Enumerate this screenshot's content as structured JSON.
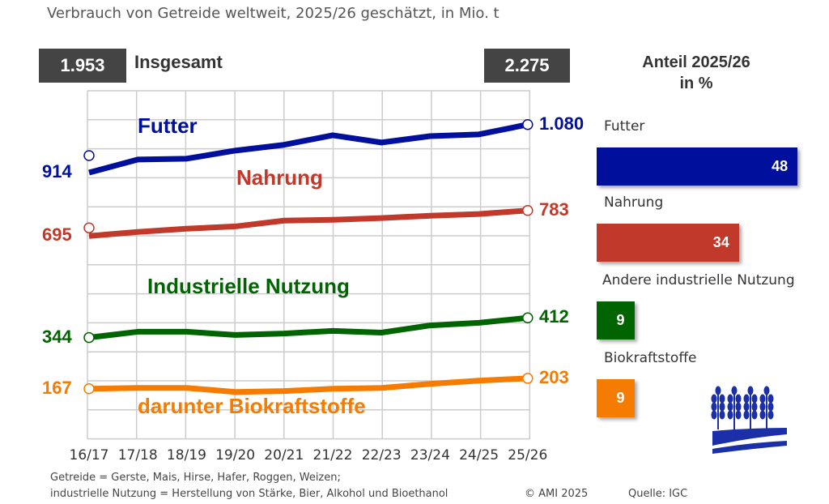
{
  "title": "Verbrauch von Getreide weltweit, 2025/26 geschätzt, in Mio. t",
  "totals": {
    "label": "Insgesamt",
    "start": "1.953",
    "end": "2.275"
  },
  "share": {
    "title_line1": "Anteil 2025/26",
    "title_line2": "in %",
    "items": [
      {
        "label": "Futter",
        "value": 48,
        "color": "#000f9c"
      },
      {
        "label": "Nahrung",
        "value": 34,
        "color": "#c0392b"
      },
      {
        "label": "Andere industrielle Nutzung",
        "value": 9,
        "color": "#006400"
      },
      {
        "label": "Biokraftstoffe",
        "value": 9,
        "color": "#f57c00"
      }
    ]
  },
  "footnote_line1": "Getreide = Gerste, Mais, Hirse, Hafer, Roggen, Weizen;",
  "footnote_line2": "industrielle Nutzung = Herstellung von Stärke, Bier, Alkohol und Bioethanol",
  "copyright": "© AMI 2025",
  "source": "Quelle: IGC",
  "chart_data": {
    "type": "line",
    "title": "Verbrauch von Getreide weltweit, 2025/26 geschätzt, in Mio. t",
    "categories": [
      "16/17",
      "17/18",
      "18/19",
      "19/20",
      "20/21",
      "21/22",
      "22/23",
      "23/24",
      "24/25",
      "25/26"
    ],
    "series": [
      {
        "name": "Futter",
        "color": "#000f9c",
        "start_label": "914",
        "end_label": "1.080",
        "values": [
          914,
          959,
          962,
          990,
          1010,
          1043,
          1018,
          1040,
          1046,
          1080
        ]
      },
      {
        "name": "Nahrung",
        "color": "#c0392b",
        "start_label": "695",
        "end_label": "783",
        "values": [
          695,
          709,
          720,
          728,
          748,
          751,
          757,
          765,
          771,
          783
        ]
      },
      {
        "name": "Industrielle Nutzung",
        "color": "#006400",
        "start_label": "344",
        "end_label": "412",
        "values": [
          344,
          364,
          364,
          353,
          358,
          367,
          361,
          386,
          395,
          412
        ]
      },
      {
        "name": "darunter Biokraftstoffe",
        "color": "#f57c00",
        "start_label": "167",
        "end_label": "203",
        "values": [
          167,
          170,
          170,
          156,
          159,
          167,
          170,
          184,
          195,
          203
        ]
      }
    ],
    "grid": true
  }
}
